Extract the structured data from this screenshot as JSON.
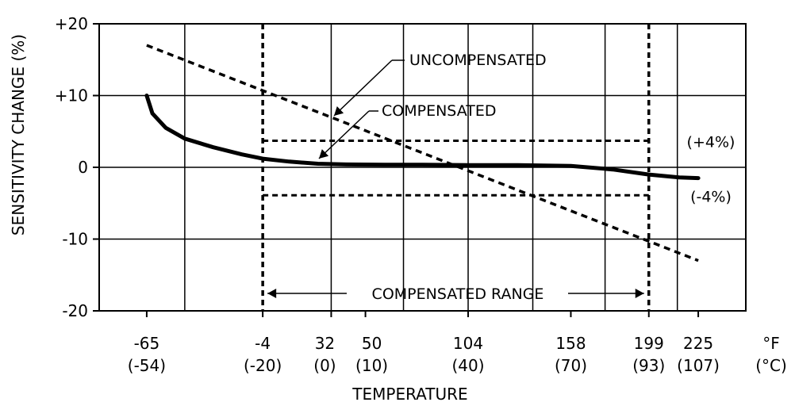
{
  "chart_data": {
    "type": "line",
    "title": "",
    "xlabel": "TEMPERATURE",
    "ylabel": "SENSITIVITY CHANGE  (%)",
    "ylim": [
      -20,
      20
    ],
    "yticks": [
      "+20",
      "+10",
      "0",
      "-10",
      "-20"
    ],
    "xlim": [
      -90,
      250
    ],
    "grid": true,
    "xticks": [
      {
        "x": -65,
        "f": "-65",
        "c": "(-54)"
      },
      {
        "x": -4,
        "f": "-4",
        "c": "(-20)"
      },
      {
        "x": 32,
        "f": "32",
        "c": "(0)"
      },
      {
        "x": 50,
        "f": "50",
        "c": "(10)"
      },
      {
        "x": 104,
        "f": "104",
        "c": "(40)"
      },
      {
        "x": 158,
        "f": "158",
        "c": "(70)"
      },
      {
        "x": 199,
        "f": "199",
        "c": "(93)"
      },
      {
        "x": 225,
        "f": "225",
        "c": "(107)"
      }
    ],
    "unit_labels": {
      "f": "°F",
      "c": "(°C)"
    },
    "series": [
      {
        "name": "UNCOMPENSATED",
        "style": "dashed",
        "x": [
          -65,
          225
        ],
        "y": [
          17,
          -13
        ]
      },
      {
        "name": "COMPENSATED",
        "style": "solid-thick",
        "x": [
          -65,
          -62,
          -55,
          -45,
          -30,
          -15,
          -4,
          10,
          25,
          40,
          60,
          80,
          104,
          130,
          158,
          180,
          199,
          215,
          225
        ],
        "y": [
          10,
          7.5,
          5.5,
          4,
          2.8,
          1.8,
          1.2,
          0.8,
          0.5,
          0.4,
          0.35,
          0.35,
          0.3,
          0.3,
          0.2,
          -0.3,
          -1,
          -1.4,
          -1.5
        ]
      }
    ],
    "limits": [
      {
        "label": "(+4%)",
        "y": 3.7
      },
      {
        "label": "(-4%)",
        "y": -3.9
      }
    ],
    "compensated_range": {
      "label": "COMPENSATED RANGE",
      "from": -4,
      "to": 199
    }
  }
}
